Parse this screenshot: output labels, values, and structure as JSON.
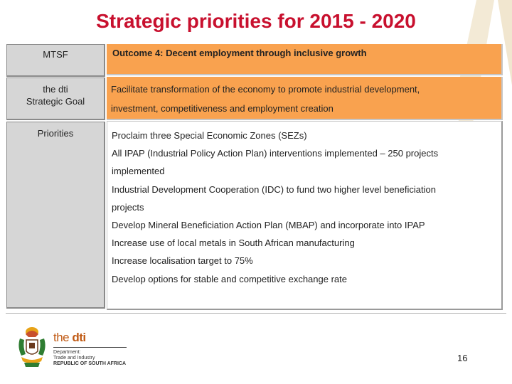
{
  "slide": {
    "title": "Strategic priorities for 2015 - 2020",
    "page_number": "16"
  },
  "rows": {
    "mtsf": {
      "label": "MTSF",
      "text": "Outcome 4: Decent employment through inclusive growth"
    },
    "goal": {
      "label_line1": "the dti",
      "label_line2": "Strategic Goal",
      "text_line1": "Facilitate transformation of the economy to promote industrial development,",
      "text_line2": "investment, competitiveness and employment creation"
    },
    "priorities": {
      "label": "Priorities",
      "lines": [
        "Proclaim three Special Economic Zones (SEZs)",
        "All IPAP (Industrial Policy Action Plan) interventions implemented – 250 projects",
        "implemented",
        "Industrial Development Cooperation (IDC) to fund two higher level beneficiation",
        "projects",
        "Develop Mineral Beneficiation Action Plan (MBAP) and incorporate into IPAP",
        "Increase use of local metals in South African manufacturing",
        "Increase localisation target to 75%",
        "Develop options for stable and competitive exchange rate"
      ]
    }
  },
  "footer": {
    "dti_prefix": "the ",
    "dti_name": "dti",
    "dept_line1": "Department:",
    "dept_line2": "Trade and Industry",
    "dept_line3": "REPUBLIC OF SOUTH AFRICA"
  },
  "colors": {
    "title": "#c8102e",
    "outcome_fill": "#f9a24f",
    "label_fill": "#d6d6d6"
  },
  "icons": {
    "logo": "coat-of-arms-icon",
    "background": "chevron-watermark"
  }
}
